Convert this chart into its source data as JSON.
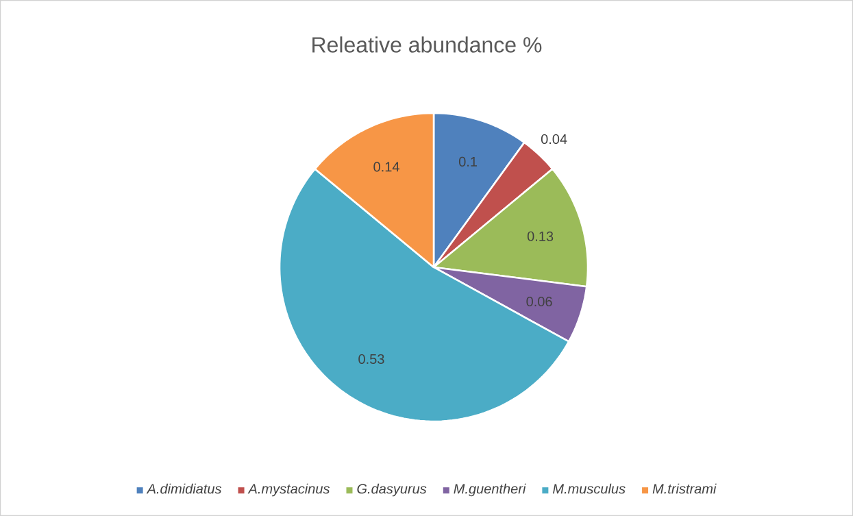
{
  "chart_data": {
    "type": "pie",
    "title": "Releative abundance %",
    "categories": [
      "A.dimidiatus",
      "A.mystacinus",
      "G.dasyurus",
      "M.guentheri",
      "M.musculus",
      "M.tristrami"
    ],
    "values": [
      0.1,
      0.04,
      0.13,
      0.06,
      0.53,
      0.14
    ],
    "colors": [
      "#4f81bd",
      "#c0504d",
      "#9bbb59",
      "#8064a2",
      "#4bacc6",
      "#f79646"
    ],
    "data_labels": true,
    "legend": "bottom"
  }
}
